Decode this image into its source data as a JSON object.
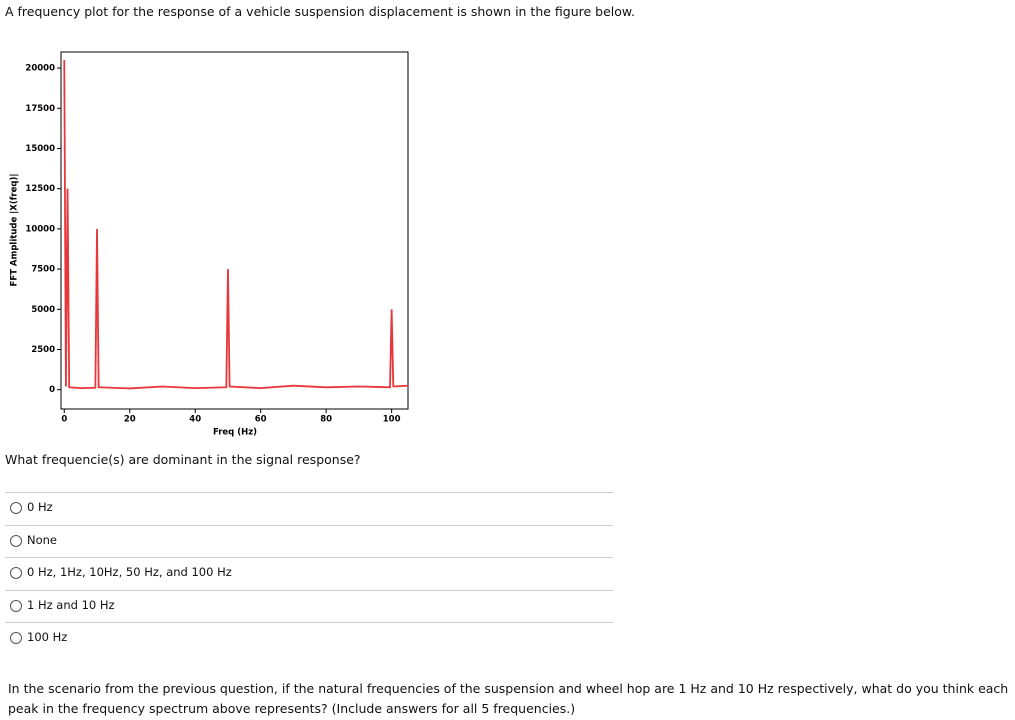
{
  "header": {
    "text": "A frequency plot for the response of a vehicle suspension displacement is shown in the figure below."
  },
  "chart": {
    "type": "line",
    "xlabel": "Freq (Hz)",
    "ylabel": "FFT Amplitude |X(freq)|",
    "x": [
      0,
      0.5,
      1,
      1.5,
      5,
      9.5,
      10,
      10.5,
      20,
      30,
      40,
      49.5,
      50,
      50.5,
      60,
      70,
      80,
      90,
      99.5,
      100,
      100.5,
      105
    ],
    "series": [
      {
        "color": "#e8363a",
        "values": [
          20500,
          200,
          12500,
          150,
          100,
          120,
          10000,
          150,
          80,
          200,
          100,
          150,
          7500,
          200,
          100,
          250,
          150,
          200,
          150,
          5000,
          200,
          250
        ]
      }
    ],
    "xlim": [
      -1,
      105
    ],
    "ylim": [
      -1200,
      21000
    ],
    "xticks": [
      0,
      20,
      40,
      60,
      80,
      100
    ],
    "yticks": [
      0,
      2500,
      5000,
      7500,
      10000,
      12500,
      15000,
      17500,
      20000
    ]
  },
  "question": {
    "text": "What frequencie(s) are dominant in the signal response?",
    "options": [
      "0 Hz",
      "None",
      "0 Hz, 1Hz, 10Hz, 50 Hz, and 100 Hz",
      "1 Hz and 10 Hz",
      "100 Hz"
    ]
  },
  "followup": {
    "text": "In the scenario from the previous question, if the natural frequencies of the suspension and wheel hop are 1 Hz and 10 Hz respectively, what do you think each peak in the frequency spectrum above represents? (Include answers for all 5 frequencies.)"
  }
}
